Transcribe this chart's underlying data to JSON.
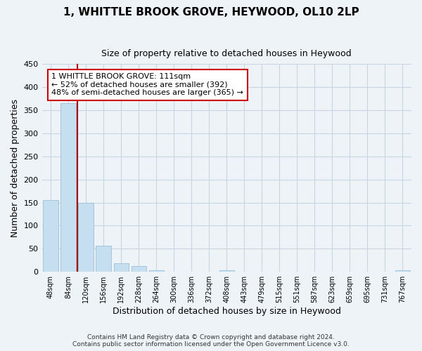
{
  "title": "1, WHITTLE BROOK GROVE, HEYWOOD, OL10 2LP",
  "subtitle": "Size of property relative to detached houses in Heywood",
  "xlabel": "Distribution of detached houses by size in Heywood",
  "ylabel": "Number of detached properties",
  "bar_labels": [
    "48sqm",
    "84sqm",
    "120sqm",
    "156sqm",
    "192sqm",
    "228sqm",
    "264sqm",
    "300sqm",
    "336sqm",
    "372sqm",
    "408sqm",
    "443sqm",
    "479sqm",
    "515sqm",
    "551sqm",
    "587sqm",
    "623sqm",
    "659sqm",
    "695sqm",
    "731sqm",
    "767sqm"
  ],
  "bar_values": [
    155,
    365,
    150,
    57,
    19,
    13,
    4,
    0,
    0,
    0,
    4,
    0,
    0,
    0,
    0,
    0,
    0,
    0,
    0,
    0,
    3
  ],
  "bar_color": "#c5dff0",
  "bar_edgecolor": "#9abfd8",
  "ylim": [
    0,
    450
  ],
  "yticks": [
    0,
    50,
    100,
    150,
    200,
    250,
    300,
    350,
    400,
    450
  ],
  "vline_x": 1.5,
  "vline_color": "#aa0000",
  "annotation_title": "1 WHITTLE BROOK GROVE: 111sqm",
  "annotation_line1": "← 52% of detached houses are smaller (392)",
  "annotation_line2": "48% of semi-detached houses are larger (365) →",
  "footer1": "Contains HM Land Registry data © Crown copyright and database right 2024.",
  "footer2": "Contains public sector information licensed under the Open Government Licence v3.0.",
  "background_color": "#eef3f8",
  "grid_color": "#c8d4e0",
  "annotation_box_facecolor": "#ffffff",
  "annotation_box_edgecolor": "#cc0000"
}
